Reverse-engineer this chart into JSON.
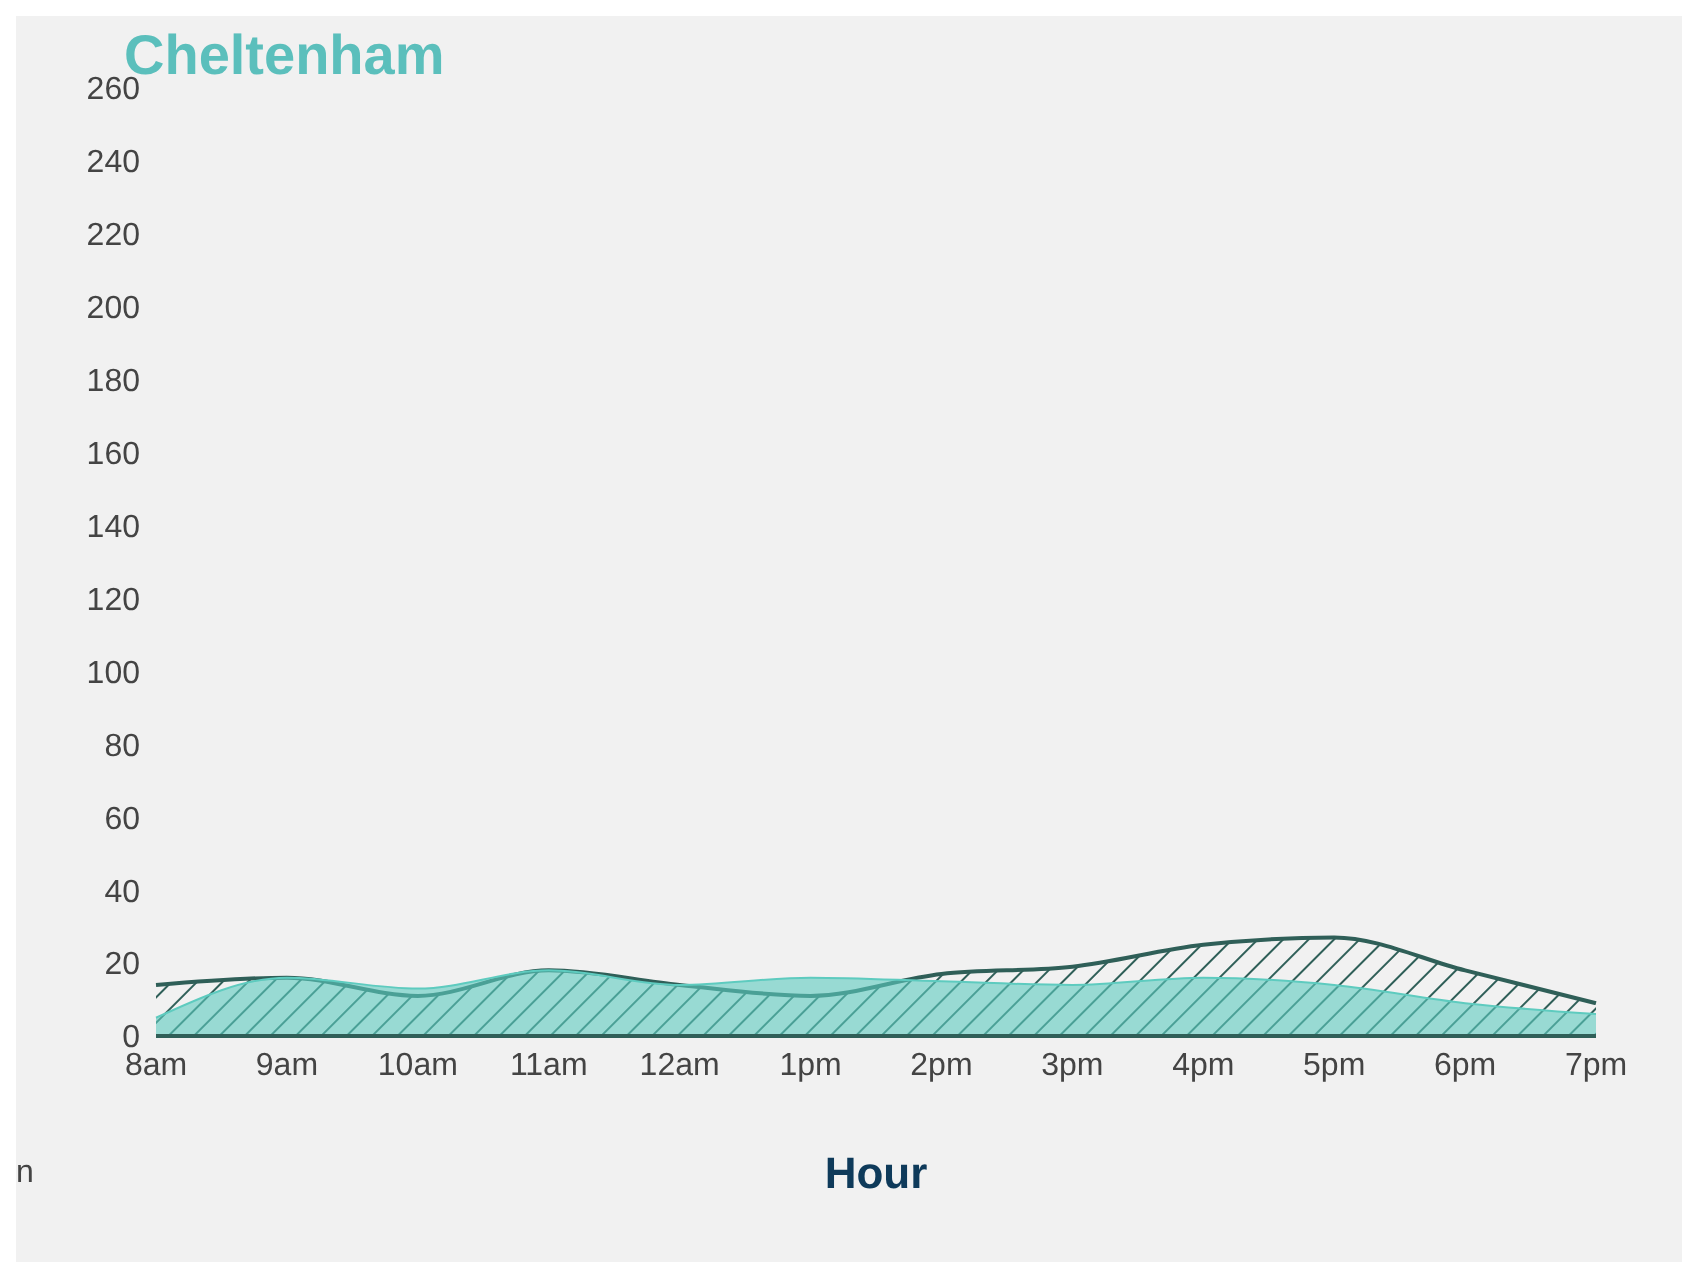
{
  "chart_data": {
    "type": "area",
    "title": "Cheltenham",
    "xlabel": "Hour",
    "annotations": [
      "n"
    ],
    "categories": [
      "8am",
      "9am",
      "10am",
      "11am",
      "12am",
      "1pm",
      "2pm",
      "3pm",
      "4pm",
      "5pm",
      "6pm",
      "7pm"
    ],
    "series": [
      {
        "color": "#2f5f58",
        "values": [
          14,
          16,
          11,
          18,
          14,
          11,
          17,
          19,
          25,
          27,
          18,
          9
        ]
      },
      {
        "color": "#5ecbbf",
        "values": [
          5,
          16,
          13,
          18,
          14,
          16,
          15,
          14,
          16,
          14,
          9,
          6
        ]
      }
    ],
    "ylim": [
      0,
      260
    ],
    "yticks": [
      0,
      20,
      40,
      60,
      80,
      100,
      120,
      140,
      160,
      180,
      200,
      220,
      240,
      260
    ]
  }
}
